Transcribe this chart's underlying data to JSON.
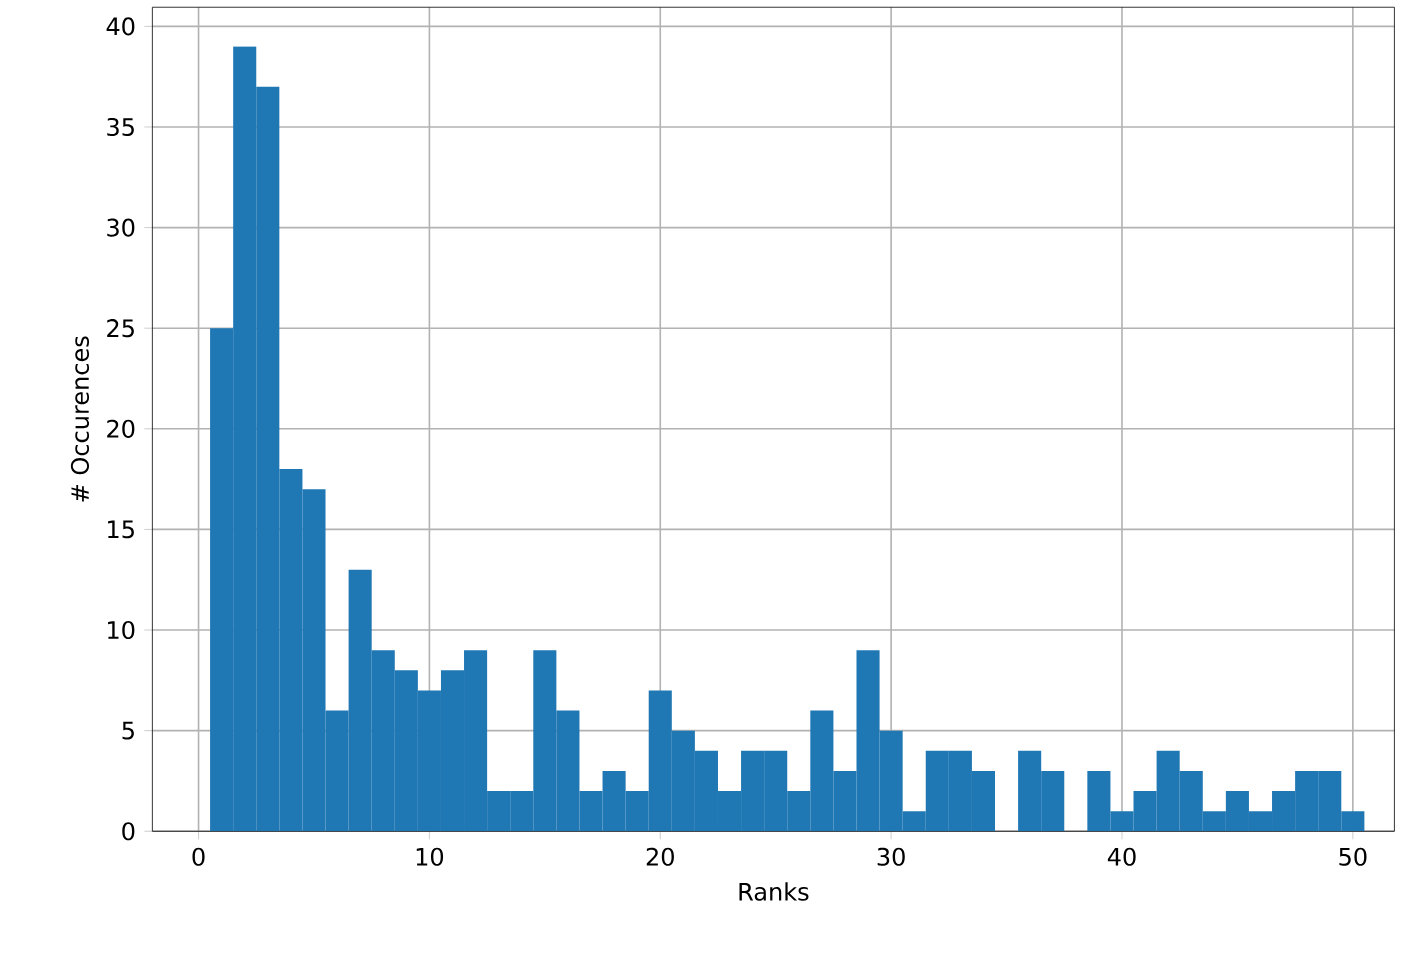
{
  "chart_data": {
    "type": "histogram",
    "xlabel": "Ranks",
    "ylabel": "# Occurences",
    "bins": [
      0.5,
      1.5,
      2.5,
      3.5,
      4.5,
      5.5,
      6.5,
      7.5,
      8.5,
      9.5,
      10.5,
      11.5,
      12.5,
      13.5,
      14.5,
      15.5,
      16.5,
      17.5,
      18.5,
      19.5,
      20.5,
      21.5,
      22.5,
      23.5,
      24.5,
      25.5,
      26.5,
      27.5,
      28.5,
      29.5,
      30.5,
      31.5,
      32.5,
      33.5,
      34.5,
      35.5,
      36.5,
      37.5,
      38.5,
      39.5,
      40.5,
      41.5,
      42.5,
      43.5,
      44.5,
      45.5,
      46.5,
      47.5,
      48.5,
      49.5,
      50.5
    ],
    "values": [
      25,
      39,
      37,
      18,
      17,
      6,
      13,
      9,
      8,
      7,
      8,
      9,
      2,
      2,
      9,
      6,
      2,
      3,
      2,
      7,
      5,
      4,
      2,
      4,
      4,
      2,
      6,
      3,
      9,
      5,
      1,
      4,
      4,
      3,
      0,
      4,
      3,
      0,
      3,
      1,
      2,
      4,
      3,
      1,
      2,
      1,
      2,
      3,
      3,
      1
    ],
    "color": "#1f77b4",
    "xlim": [
      -2,
      51.8
    ],
    "ylim": [
      0,
      40.95
    ],
    "xticks": [
      0,
      10,
      20,
      30,
      40,
      50
    ],
    "yticks": [
      0,
      5,
      10,
      15,
      20,
      25,
      30,
      35,
      40
    ],
    "grid": true
  }
}
